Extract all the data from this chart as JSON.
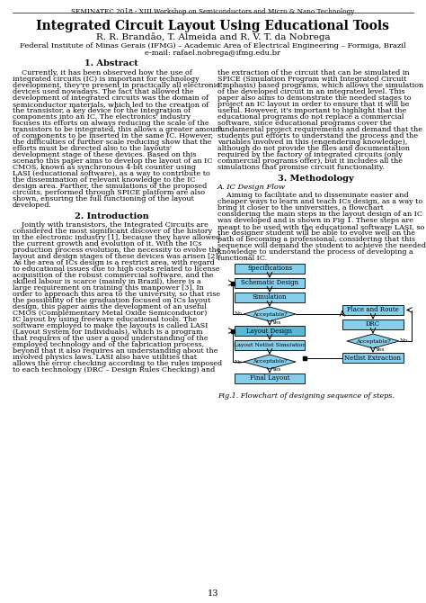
{
  "header": "SEMINATEC 2018 - XIII Workshop on Semiconductors and Micro & Nano Technology",
  "title": "Integrated Circuit Layout Using Educational Tools",
  "authors": "R. R. Brandão, T. Almeida and R. V. T. da Nobrega",
  "affiliation": "Federal Institute of Minas Gerais (IFMG) – Academic Area of Electrical Engineering – Formiga, Brazil",
  "email": "e-mail: rafael.nobrega@ifmg.edu.br",
  "sec1_title": "1. Abstract",
  "sec1_left": "    Currently, it has been observed how the use of\nintegrated circuits (IC) is important for technology\ndevelopment, they're present in practically all electronic\ndevices used nowadays. The fact that allowed the\ndevelopment of integrated circuits was the domain of\nsemiconductor materials, which led to the creation of\nthe transistor, a key device for the integration of\ncomponents into an IC. The electronics' industry\nfocuses its efforts on always reducing the scale of the\ntransistors to be integrated, this allows a greater amount\nof components to be inserted in the same IC. However,\nthe difficulties of further scale reducing show that the\nefforts must be directed also to the layouts'\ndevelopment stage of these devices. Based on this\nscenario this paper aims to develop the layout of an IC\nCMOS, known as synchronous 4-bit counter using\nLASI (educational software), as a way to contribute to\nthe dissemination of relevant knowledge to the IC\ndesign area. Farther, the simulations of the proposed\ncircuits, performed through SPICE platform are also\nshown, ensuring the full functioning of the layout\ndeveloped.",
  "sec1_right": "the extraction of the circuit that can be simulated in\nSPICE (Simulation Program with Integrated Circuit\nEmphasis) based programs, which allows the simulation\nof the developed circuit in an integrated level. This\npaper also aims to demonstrate the needed stages to\nproject an IC layout in order to ensure that it will be\nuseful. However, it's important to highlight that the\neducational programs do not replace a commercial\nsoftware, since educational programs cover the\nfundamental project requirements and demand that the\nstudents put efforts to understand the process and the\nvariables involved in this (engendering knowledge),\nalthough do not provide the files and documentation\nrequired by the factory of integrated circuits (only\ncommercial programs offer), but it includes all the\nsimulations that promise circuit functionality.",
  "sec2_title": "2. Introduction",
  "sec2_left": "    Jointly with transistors, the Integrated Circuits are\nconsidered the most significant discover of the history\nin the electronic industry [1], because they have allowed\nthe current growth and evolution of it. With the ICs\nproduction process evolution, the necessity to evolve the\nlayout and design stages of these devices was arisen [2].\nAs the area of ICs design is a restrict area, with regard\nto educational issues due to high costs related to license\nacquisition of the robust commercial software, and the\nskilled labour is scarce (mainly in Brazil), there is a\nlarge requirement on training this manpower [3]. In\norder to approach this area to the university, so that rise\nthe possibility of the graduation focused on ICs layout\ndesign, this paper aims the development of an useful\nCMOS (Complementary Metal Oxide Semiconductor)\nIC layout by using freeware educational tools. The\nsoftware employed to make the layouts is called LASI\n(Layout System for Individuals), which is a program\nthat requires of the user a good understanding of the\nemployed technology and of the fabrication process,\nbeyond that it also requires an understanding about the\ninvolved physics laws. LASI also have utilities that\nallows the error checking according to the rules imposed\nto each technology (DRC – Design Rules Checking) and",
  "sec3_title": "3. Methodology",
  "sec3_subtitle": "A. IC Design Flow",
  "sec3_intro": "    Aiming to facilitate and to disseminate easier and\ncheaper ways to learn and teach ICs design, as a way to\nbring it closer to the universities, a flowchart\nconsidering the main steps in the layout design of an IC\nwas developed and is shown in Fig 1. These steps are\nmeant to be used with the educational software LASI, so\nthe designer student will be able to evolve well on the\npath of becoming a professional, considering that this\nsequence will demand the student to achieve the needed\nknowledge to understand the process of developing a\nfunctional IC.",
  "fig_caption": "Fig.1. Flowchart of designing sequence of steps.",
  "page_number": "13",
  "bg_color": "#ffffff",
  "box_fill": "#87CEEB",
  "box_edge": "#000000",
  "line_color": "#000000"
}
